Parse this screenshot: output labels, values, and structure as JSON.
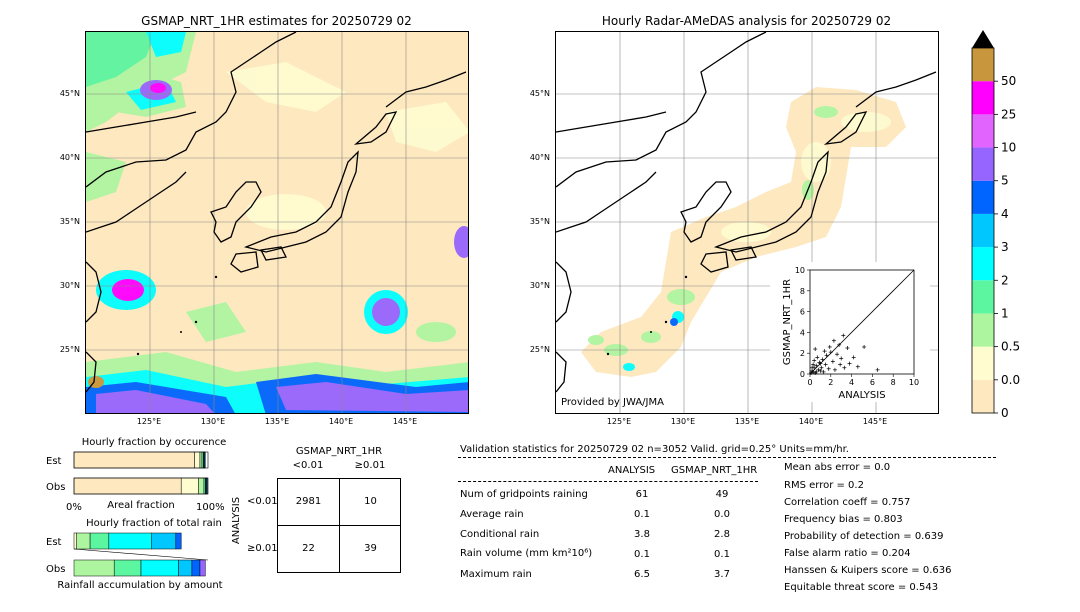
{
  "left_map": {
    "title": "GSMAP_NRT_1HR estimates for 20250729 02",
    "lat_labels": [
      "45°N",
      "40°N",
      "35°N",
      "30°N",
      "25°N"
    ],
    "lon_labels": [
      "125°E",
      "130°E",
      "135°E",
      "140°E",
      "145°E"
    ]
  },
  "right_map": {
    "title": "Hourly Radar-AMeDAS analysis for 20250729 02",
    "lat_labels": [
      "45°N",
      "40°N",
      "35°N",
      "30°N",
      "25°N"
    ],
    "lon_labels": [
      "125°E",
      "130°E",
      "135°E",
      "140°E",
      "145°E"
    ],
    "credit": "Provided by JWA/JMA"
  },
  "colorbar": {
    "levels": [
      "0",
      "0.01",
      "0.5",
      "1",
      "2",
      "3",
      "4",
      "5",
      "10",
      "25",
      "50"
    ],
    "colors": [
      "#fde8c0",
      "#fffcd0",
      "#aef5a0",
      "#5cf5a0",
      "#00ffff",
      "#00c8ff",
      "#0064ff",
      "#9664ff",
      "#e164ff",
      "#ff00ff",
      "#c8963c"
    ]
  },
  "chart_data": [
    {
      "type": "scatter",
      "xlabel": "ANALYSIS",
      "ylabel": "GSMAP_NRT_1HR",
      "xlim": [
        0,
        10
      ],
      "ylim": [
        0,
        10
      ],
      "x_ticks": [
        "0",
        "2",
        "4",
        "6",
        "8",
        "10"
      ],
      "y_ticks": [
        "0",
        "2",
        "4",
        "6",
        "8",
        "10"
      ],
      "points": [
        [
          0.1,
          0.1
        ],
        [
          0.2,
          0.3
        ],
        [
          0.3,
          0.2
        ],
        [
          0.4,
          0.6
        ],
        [
          0.5,
          0.1
        ],
        [
          0.6,
          0.8
        ],
        [
          0.8,
          0.4
        ],
        [
          0.9,
          1.1
        ],
        [
          1.0,
          0.3
        ],
        [
          1.1,
          0.6
        ],
        [
          1.2,
          1.4
        ],
        [
          1.3,
          0.2
        ],
        [
          1.5,
          0.9
        ],
        [
          1.6,
          1.8
        ],
        [
          1.8,
          0.5
        ],
        [
          2.0,
          2.1
        ],
        [
          2.2,
          1.2
        ],
        [
          2.4,
          0.4
        ],
        [
          2.6,
          1.9
        ],
        [
          2.8,
          2.8
        ],
        [
          3.0,
          1.5
        ],
        [
          3.3,
          0.6
        ],
        [
          3.6,
          2.5
        ],
        [
          3.8,
          1.0
        ],
        [
          4.2,
          1.6
        ],
        [
          4.6,
          0.7
        ],
        [
          5.2,
          2.6
        ],
        [
          6.5,
          0.4
        ],
        [
          0.7,
          1.6
        ],
        [
          0.3,
          0.9
        ],
        [
          1.9,
          2.6
        ],
        [
          2.3,
          3.2
        ],
        [
          3.2,
          3.7
        ],
        [
          0.5,
          2.4
        ],
        [
          1.4,
          2.2
        ],
        [
          0.2,
          0.6
        ],
        [
          0.6,
          0.2
        ],
        [
          1.0,
          1.0
        ],
        [
          0.4,
          1.3
        ],
        [
          2.9,
          0.9
        ]
      ]
    },
    {
      "type": "bar",
      "title": "Hourly fraction by occurence",
      "categories": [
        "Est",
        "Obs"
      ],
      "xlabel": "Areal fraction",
      "x_ticks": [
        "0%",
        "100%"
      ],
      "series_colors": [
        "#fde8c0",
        "#fffcd0",
        "#aef5a0",
        "#5cf5a0",
        "#00ffff",
        "#00c8ff",
        "#0064ff"
      ],
      "rows": [
        {
          "name": "Est",
          "segments": [
            0.9,
            0.04,
            0.015,
            0.01,
            0.005,
            0.005,
            0.005
          ]
        },
        {
          "name": "Obs",
          "segments": [
            0.8,
            0.13,
            0.04,
            0.01,
            0.005,
            0.005,
            0.005
          ]
        }
      ]
    },
    {
      "type": "bar",
      "title": "Hourly fraction of total rain",
      "categories": [
        "Est",
        "Obs"
      ],
      "xlabel": "Rainfall accumulation by amount",
      "series_colors": [
        "#fffcd0",
        "#aef5a0",
        "#5cf5a0",
        "#00ffff",
        "#00c8ff",
        "#0064ff",
        "#9664ff"
      ],
      "rows": [
        {
          "name": "Est",
          "segments": [
            0.02,
            0.1,
            0.14,
            0.32,
            0.18,
            0.04,
            0.0
          ]
        },
        {
          "name": "Obs",
          "segments": [
            0.0,
            0.3,
            0.2,
            0.28,
            0.1,
            0.06,
            0.04
          ]
        }
      ]
    }
  ],
  "contingency": {
    "title": "GSMAP_NRT_1HR",
    "col_headers": [
      "<0.01",
      "≥0.01"
    ],
    "row_headers": [
      "<0.01",
      "≥0.01"
    ],
    "side_label": "ANALYSIS",
    "cells": [
      "2981",
      "10",
      "22",
      "39"
    ]
  },
  "validation": {
    "header": "Validation statistics for 20250729 02  n=3052 Valid. grid=0.25° Units=mm/hr.",
    "col1": "ANALYSIS",
    "col2": "GSMAP_NRT_1HR",
    "rows": [
      {
        "label": "Num of gridpoints raining",
        "a": "61",
        "b": "49"
      },
      {
        "label": "Average rain",
        "a": "0.1",
        "b": "0.0"
      },
      {
        "label": "Conditional rain",
        "a": "3.8",
        "b": "2.8"
      },
      {
        "label": "Rain volume (mm km²10⁶)",
        "a": "0.1",
        "b": "0.1"
      },
      {
        "label": "Maximum rain",
        "a": "6.5",
        "b": "3.7"
      }
    ],
    "scores": [
      "Mean abs error =    0.0",
      "RMS error =    0.2",
      "Correlation coeff =  0.757",
      "Frequency bias =  0.803",
      "Probability of detection =  0.639",
      "False alarm ratio =  0.204",
      "Hanssen & Kuipers score =  0.636",
      "Equitable threat score =  0.543"
    ]
  }
}
